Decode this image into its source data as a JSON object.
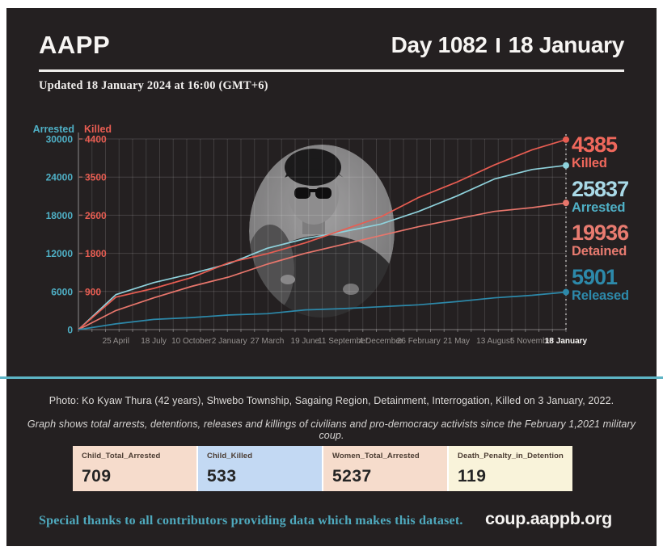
{
  "header": {
    "brand": "AAPP",
    "day_label": "Day 1082",
    "date_label": "18 January",
    "updated_line": "Updated 18 January 2024 at 16:00 (GMT+6)"
  },
  "chart": {
    "left_axis_title": "Arrested",
    "killed_axis_title": "Killed",
    "arrested_ticks": [
      "30000",
      "24000",
      "18000",
      "12000",
      "6000",
      "0"
    ],
    "killed_ticks": [
      "4400",
      "3500",
      "2600",
      "1800",
      "900"
    ],
    "x_labels": [
      "25 April",
      "18 July",
      "10 October",
      "2 January",
      "27 March",
      "19 June",
      "11 September",
      "4 December",
      "26 February",
      "21 May",
      "13 August",
      "5 November",
      "18 January"
    ],
    "current_x_label": "18 January",
    "totals": [
      {
        "value": "4385",
        "label": "Killed",
        "num_color": "#f0685c",
        "label_color": "#f0685c"
      },
      {
        "value": "25837",
        "label": "Arrested",
        "num_color": "#a9d9e7",
        "label_color": "#4fb0c6"
      },
      {
        "value": "19936",
        "label": "Detained",
        "num_color": "#e87b70",
        "label_color": "#e87b70"
      },
      {
        "value": "5901",
        "label": "Released",
        "num_color": "#2d89aa",
        "label_color": "#2d89aa"
      }
    ]
  },
  "chart_data": {
    "type": "line",
    "categories": [
      "25 April",
      "18 July",
      "10 October",
      "2 January",
      "27 March",
      "19 June",
      "11 September",
      "4 December",
      "26 February",
      "21 May",
      "13 August",
      "5 November",
      "18 January"
    ],
    "x_start_note": "all series start at 0 on 1 February 2021 (military coup), left edge of plot",
    "x_days": [
      0,
      83,
      167,
      251,
      335,
      419,
      503,
      587,
      671,
      755,
      839,
      923,
      1007,
      1082
    ],
    "x_total_days": 1082,
    "arrested_ylim": [
      0,
      30000
    ],
    "killed_ylim": [
      0,
      4400
    ],
    "grid": true,
    "series": [
      {
        "name": "Arrested",
        "axis": "arrested",
        "color": "#8fd2dc",
        "values": [
          0,
          5500,
          7400,
          8800,
          10400,
          12800,
          14300,
          15400,
          16600,
          18600,
          21000,
          23700,
          25200,
          25837
        ],
        "final": 25837
      },
      {
        "name": "Killed",
        "axis": "killed",
        "color": "#e85d52",
        "values": [
          0,
          750,
          950,
          1200,
          1550,
          1750,
          2000,
          2300,
          2600,
          3050,
          3400,
          3800,
          4150,
          4385
        ],
        "final": 4385
      },
      {
        "name": "Detained",
        "axis": "arrested",
        "color": "#e8766c",
        "values": [
          0,
          3000,
          5000,
          6800,
          8300,
          10300,
          12000,
          13400,
          14800,
          16200,
          17400,
          18600,
          19200,
          19936
        ],
        "final": 19936
      },
      {
        "name": "Released",
        "axis": "arrested",
        "color": "#2d89aa",
        "values": [
          0,
          900,
          1600,
          1900,
          2300,
          2500,
          3100,
          3300,
          3600,
          3900,
          4400,
          5000,
          5400,
          5901
        ],
        "final": 5901
      }
    ]
  },
  "captions": {
    "photo_caption": "Photo: Ko Kyaw Thura (42 years), Shwebo Township, Sagaing Region, Detainment, Interrogation, Killed on 3 January, 2022.",
    "graph_caption": "Graph shows total arrests, detentions, releases and killings of civilians and pro-democracy activists since the February 1,2021 military coup."
  },
  "stat_boxes": [
    {
      "label": "Child_Total_Arrested",
      "value": "709",
      "bg": "#f6dccc"
    },
    {
      "label": "Child_Killed",
      "value": "533",
      "bg": "#c3d9f3"
    },
    {
      "label": "Women_Total_Arrested",
      "value": "5237",
      "bg": "#f6dccc"
    },
    {
      "label": "Death_Penalty_in_Detention",
      "value": "119",
      "bg": "#f9f3da"
    }
  ],
  "footer": {
    "thanks": "Special thanks to all contributors providing data which makes this dataset.",
    "site": "coup.aappb.org"
  },
  "colors": {
    "card_bg": "#242021",
    "divider": "#5cb4c5",
    "accent_teal": "#4fb0c6",
    "accent_red": "#e85d52",
    "x_label": "#969290",
    "x_label_current": "#f7f5f3"
  }
}
